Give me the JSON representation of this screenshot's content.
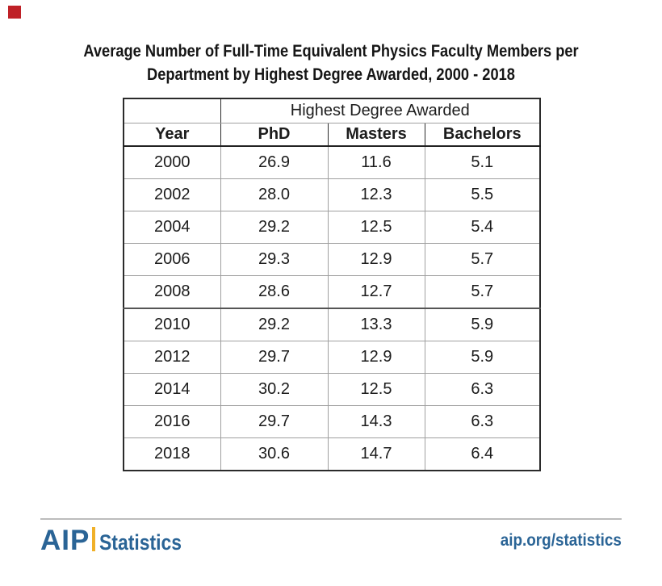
{
  "brand": {
    "corner_square_color": "#bf2127"
  },
  "title": {
    "line1": "Average Number of Full-Time Equivalent Physics Faculty Members per",
    "line2": "Department by Highest Degree Awarded, 2000 - 2018"
  },
  "table": {
    "group_header": "Highest Degree Awarded",
    "columns": [
      "Year",
      "PhD",
      "Masters",
      "Bachelors"
    ],
    "rows": [
      [
        "2000",
        "26.9",
        "11.6",
        "5.1"
      ],
      [
        "2002",
        "28.0",
        "12.3",
        "5.5"
      ],
      [
        "2004",
        "29.2",
        "12.5",
        "5.4"
      ],
      [
        "2006",
        "29.3",
        "12.9",
        "5.7"
      ],
      [
        "2008",
        "28.6",
        "12.7",
        "5.7"
      ],
      [
        "2010",
        "29.2",
        "13.3",
        "5.9"
      ],
      [
        "2012",
        "29.7",
        "12.9",
        "5.9"
      ],
      [
        "2014",
        "30.2",
        "12.5",
        "6.3"
      ],
      [
        "2016",
        "29.7",
        "14.3",
        "6.3"
      ],
      [
        "2018",
        "30.6",
        "14.7",
        "6.4"
      ]
    ]
  },
  "footer": {
    "logo_aip": "AIP",
    "logo_text": "Statistics",
    "link": "aip.org/statistics",
    "brand_blue": "#2a6496",
    "brand_gold": "#f0b028",
    "rule_color": "#bcbcbc"
  },
  "chart_data": {
    "type": "table",
    "title": "Average Number of Full-Time Equivalent Physics Faculty Members per Department by Highest Degree Awarded, 2000 - 2018",
    "group_header": "Highest Degree Awarded",
    "row_header": "Year",
    "categories": [
      "2000",
      "2002",
      "2004",
      "2006",
      "2008",
      "2010",
      "2012",
      "2014",
      "2016",
      "2018"
    ],
    "series": [
      {
        "name": "PhD",
        "values": [
          26.9,
          28.0,
          29.2,
          29.3,
          28.6,
          29.2,
          29.7,
          30.2,
          29.7,
          30.6
        ]
      },
      {
        "name": "Masters",
        "values": [
          11.6,
          12.3,
          12.5,
          12.9,
          12.7,
          13.3,
          12.9,
          12.5,
          14.3,
          14.7
        ]
      },
      {
        "name": "Bachelors",
        "values": [
          5.1,
          5.5,
          5.4,
          5.7,
          5.7,
          5.9,
          5.9,
          6.3,
          6.3,
          6.4
        ]
      }
    ]
  }
}
